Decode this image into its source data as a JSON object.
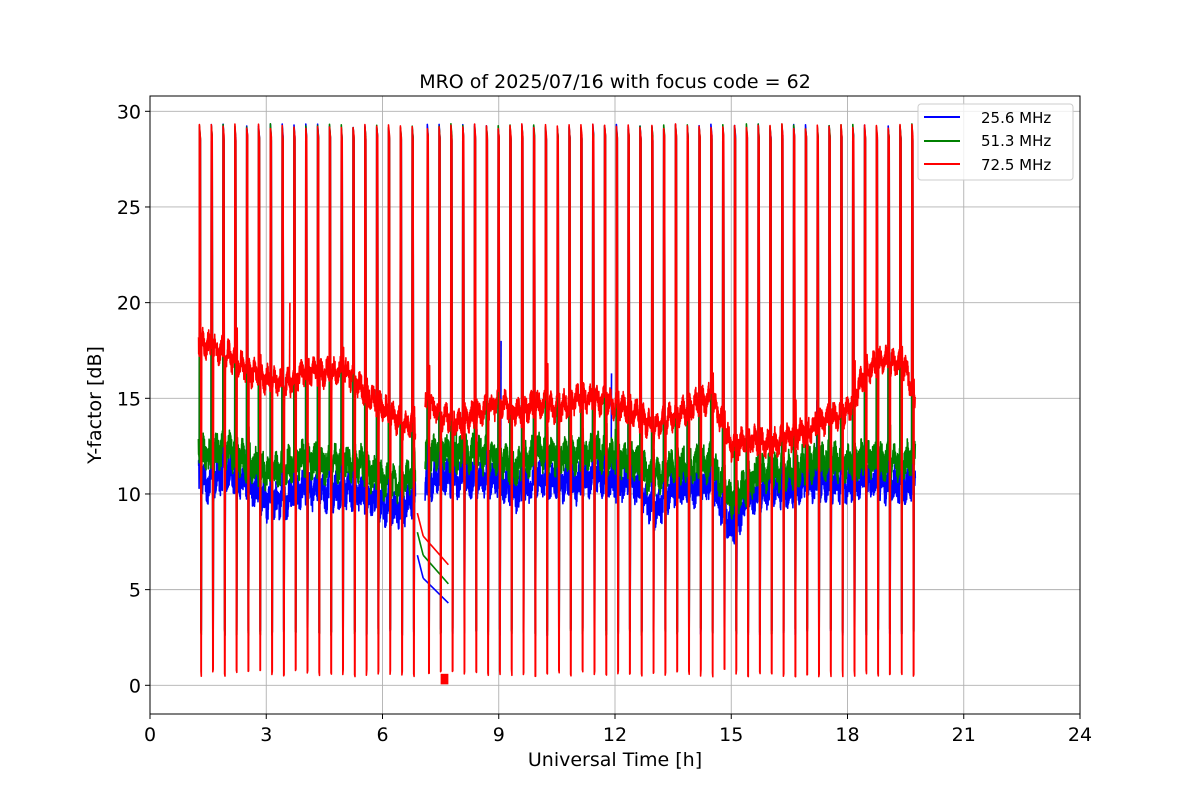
{
  "colors": {
    "series_25_6": "#0000ff",
    "series_51_3": "#008000",
    "series_72_5": "#ff0000",
    "grid": "#b0b0b0",
    "axes": "#000000",
    "background": "#ffffff"
  },
  "chart_data": {
    "type": "line",
    "title": "MRO of 2025/07/16 with focus code = 62",
    "xlabel": "Universal Time [h]",
    "ylabel": "Y-factor [dB]",
    "xlim": [
      0,
      24
    ],
    "ylim": [
      -1.5,
      30.8
    ],
    "xticks": [
      0,
      3,
      6,
      9,
      12,
      15,
      18,
      21,
      24
    ],
    "xtick_labels": [
      "0",
      "3",
      "6",
      "9",
      "12",
      "15",
      "18",
      "21",
      "24"
    ],
    "yticks": [
      0,
      5,
      10,
      15,
      20,
      25,
      30
    ],
    "ytick_labels": [
      "0",
      "5",
      "10",
      "15",
      "20",
      "25",
      "30"
    ],
    "grid": true,
    "legend_position": "top-right",
    "data_range_hours": [
      1.25,
      19.75
    ],
    "calibration_gap_hours": [
      6.85,
      7.1
    ],
    "calibration_period_hours": 0.305,
    "calibration_peak_db": 29.2,
    "series": [
      {
        "name": "25.6 MHz",
        "legend_label": "    25.6 MHz",
        "color": "#0000ff",
        "baseline_points": [
          [
            1.25,
            11.0
          ],
          [
            1.5,
            10.5
          ],
          [
            2.0,
            11.2
          ],
          [
            2.5,
            10.6
          ],
          [
            3.0,
            9.6
          ],
          [
            3.5,
            9.7
          ],
          [
            4.0,
            10.3
          ],
          [
            4.5,
            10.0
          ],
          [
            5.0,
            10.2
          ],
          [
            5.5,
            10.0
          ],
          [
            6.0,
            9.4
          ],
          [
            6.5,
            9.2
          ],
          [
            6.85,
            10.0
          ],
          [
            7.1,
            10.5
          ],
          [
            7.5,
            11.0
          ],
          [
            8.0,
            10.7
          ],
          [
            8.5,
            10.9
          ],
          [
            9.0,
            10.7
          ],
          [
            9.5,
            10.0
          ],
          [
            10.0,
            10.9
          ],
          [
            10.5,
            10.6
          ],
          [
            11.0,
            10.5
          ],
          [
            11.5,
            11.0
          ],
          [
            12.0,
            10.6
          ],
          [
            12.5,
            10.6
          ],
          [
            13.0,
            9.0
          ],
          [
            13.5,
            10.4
          ],
          [
            14.0,
            10.3
          ],
          [
            14.5,
            10.6
          ],
          [
            15.0,
            8.2
          ],
          [
            15.5,
            9.8
          ],
          [
            16.0,
            10.3
          ],
          [
            16.5,
            10.2
          ],
          [
            17.0,
            10.6
          ],
          [
            17.5,
            10.6
          ],
          [
            18.0,
            10.5
          ],
          [
            18.5,
            10.7
          ],
          [
            19.0,
            10.5
          ],
          [
            19.5,
            10.5
          ],
          [
            19.75,
            10.6
          ]
        ],
        "transition_points": [
          [
            7.05,
            5.6
          ],
          [
            7.7,
            4.3
          ]
        ],
        "calibration_low_db": 2.6,
        "spike_points": [
          [
            9.05,
            18.0
          ],
          [
            11.9,
            16.3
          ],
          [
            17.2,
            14.9
          ]
        ]
      },
      {
        "name": "51.3 MHz",
        "legend_label": "    51.3 MHz",
        "color": "#008000",
        "baseline_points": [
          [
            1.25,
            12.3
          ],
          [
            1.5,
            11.9
          ],
          [
            2.0,
            12.4
          ],
          [
            2.5,
            11.7
          ],
          [
            3.0,
            11.1
          ],
          [
            3.5,
            11.4
          ],
          [
            4.0,
            11.9
          ],
          [
            4.5,
            11.5
          ],
          [
            5.0,
            11.7
          ],
          [
            5.5,
            11.5
          ],
          [
            6.0,
            10.6
          ],
          [
            6.5,
            10.6
          ],
          [
            6.85,
            11.3
          ],
          [
            7.1,
            11.8
          ],
          [
            7.5,
            12.3
          ],
          [
            8.0,
            12.0
          ],
          [
            8.5,
            12.1
          ],
          [
            9.0,
            11.9
          ],
          [
            9.5,
            11.3
          ],
          [
            10.0,
            12.2
          ],
          [
            10.5,
            12.0
          ],
          [
            11.0,
            11.9
          ],
          [
            11.5,
            12.2
          ],
          [
            12.0,
            11.9
          ],
          [
            12.5,
            11.7
          ],
          [
            13.0,
            10.7
          ],
          [
            13.5,
            11.6
          ],
          [
            14.0,
            11.5
          ],
          [
            14.5,
            11.6
          ],
          [
            15.0,
            9.6
          ],
          [
            15.5,
            10.7
          ],
          [
            16.0,
            11.2
          ],
          [
            16.5,
            11.2
          ],
          [
            17.0,
            11.6
          ],
          [
            17.5,
            11.7
          ],
          [
            18.0,
            11.6
          ],
          [
            18.5,
            11.8
          ],
          [
            19.0,
            11.6
          ],
          [
            19.5,
            11.7
          ],
          [
            19.75,
            12.0
          ]
        ],
        "transition_points": [
          [
            7.05,
            6.8
          ],
          [
            7.7,
            5.3
          ]
        ],
        "calibration_low_db": 2.6,
        "spike_points": [
          [
            7.9,
            13.8
          ],
          [
            12.0,
            13.4
          ]
        ]
      },
      {
        "name": "72.5 MHz",
        "legend_label": "    72.5 MHz",
        "color": "#ff0000",
        "baseline_points": [
          [
            1.25,
            18.0
          ],
          [
            1.5,
            17.7
          ],
          [
            2.0,
            17.3
          ],
          [
            2.5,
            16.5
          ],
          [
            3.0,
            16.0
          ],
          [
            3.5,
            15.7
          ],
          [
            4.0,
            16.5
          ],
          [
            4.5,
            16.3
          ],
          [
            5.0,
            16.5
          ],
          [
            5.5,
            15.5
          ],
          [
            6.0,
            14.5
          ],
          [
            6.5,
            13.7
          ],
          [
            6.85,
            13.6
          ],
          [
            7.1,
            14.7
          ],
          [
            7.5,
            14.2
          ],
          [
            8.0,
            13.7
          ],
          [
            8.5,
            14.2
          ],
          [
            9.0,
            14.8
          ],
          [
            9.5,
            14.3
          ],
          [
            10.0,
            14.7
          ],
          [
            10.5,
            14.4
          ],
          [
            11.0,
            15.0
          ],
          [
            11.5,
            14.9
          ],
          [
            12.0,
            14.7
          ],
          [
            12.5,
            14.3
          ],
          [
            13.0,
            13.5
          ],
          [
            13.5,
            14.1
          ],
          [
            14.0,
            14.6
          ],
          [
            14.5,
            15.0
          ],
          [
            15.0,
            12.5
          ],
          [
            15.5,
            12.9
          ],
          [
            16.0,
            12.5
          ],
          [
            16.5,
            13.0
          ],
          [
            17.0,
            13.4
          ],
          [
            17.5,
            13.9
          ],
          [
            18.0,
            14.3
          ],
          [
            18.5,
            16.5
          ],
          [
            19.0,
            17.0
          ],
          [
            19.5,
            16.6
          ],
          [
            19.75,
            15.0
          ]
        ],
        "transition_points": [
          [
            7.05,
            7.8
          ],
          [
            7.7,
            6.3
          ]
        ],
        "calibration_low_db": 0.45,
        "spike_points": [
          [
            3.6,
            20.0
          ],
          [
            1.3,
            18.9
          ]
        ]
      }
    ]
  }
}
